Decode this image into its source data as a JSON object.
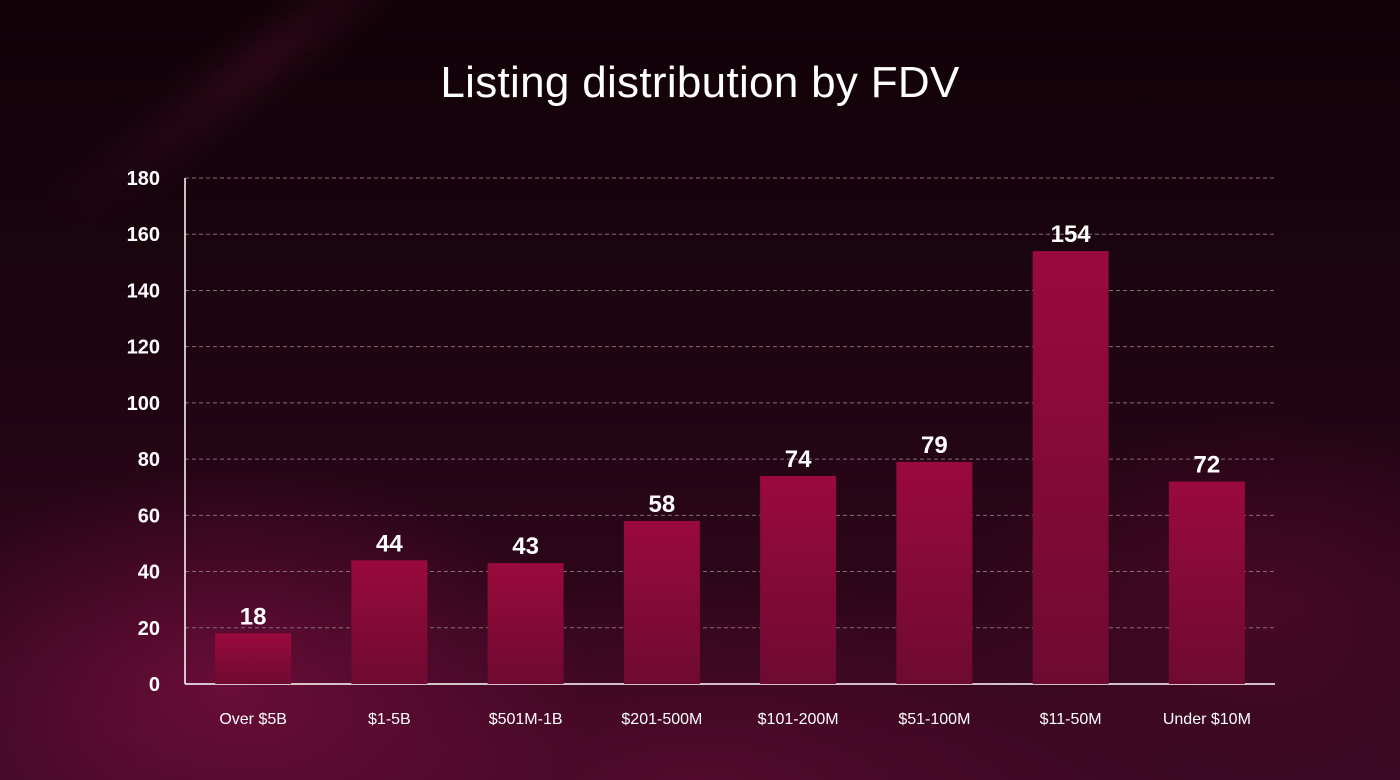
{
  "chart_data": {
    "type": "bar",
    "title": "Listing distribution by FDV",
    "xlabel": "",
    "ylabel": "",
    "categories": [
      "Over $5B",
      "$1-5B",
      "$501M-1B",
      "$201-500M",
      "$101-200M",
      "$51-100M",
      "$11-50M",
      "Under $10M"
    ],
    "values": [
      18,
      44,
      43,
      58,
      74,
      79,
      154,
      72
    ],
    "ylim": [
      0,
      180
    ],
    "yticks": [
      0,
      20,
      40,
      60,
      80,
      100,
      120,
      140,
      160,
      180
    ],
    "grid": true,
    "data_labels": true,
    "colors": {
      "bar_top": "#9a0a3c",
      "bar_bottom": "#6e0a30",
      "grid": "#8a6a78",
      "axis": "#ffffff",
      "text": "#ffffff"
    }
  }
}
